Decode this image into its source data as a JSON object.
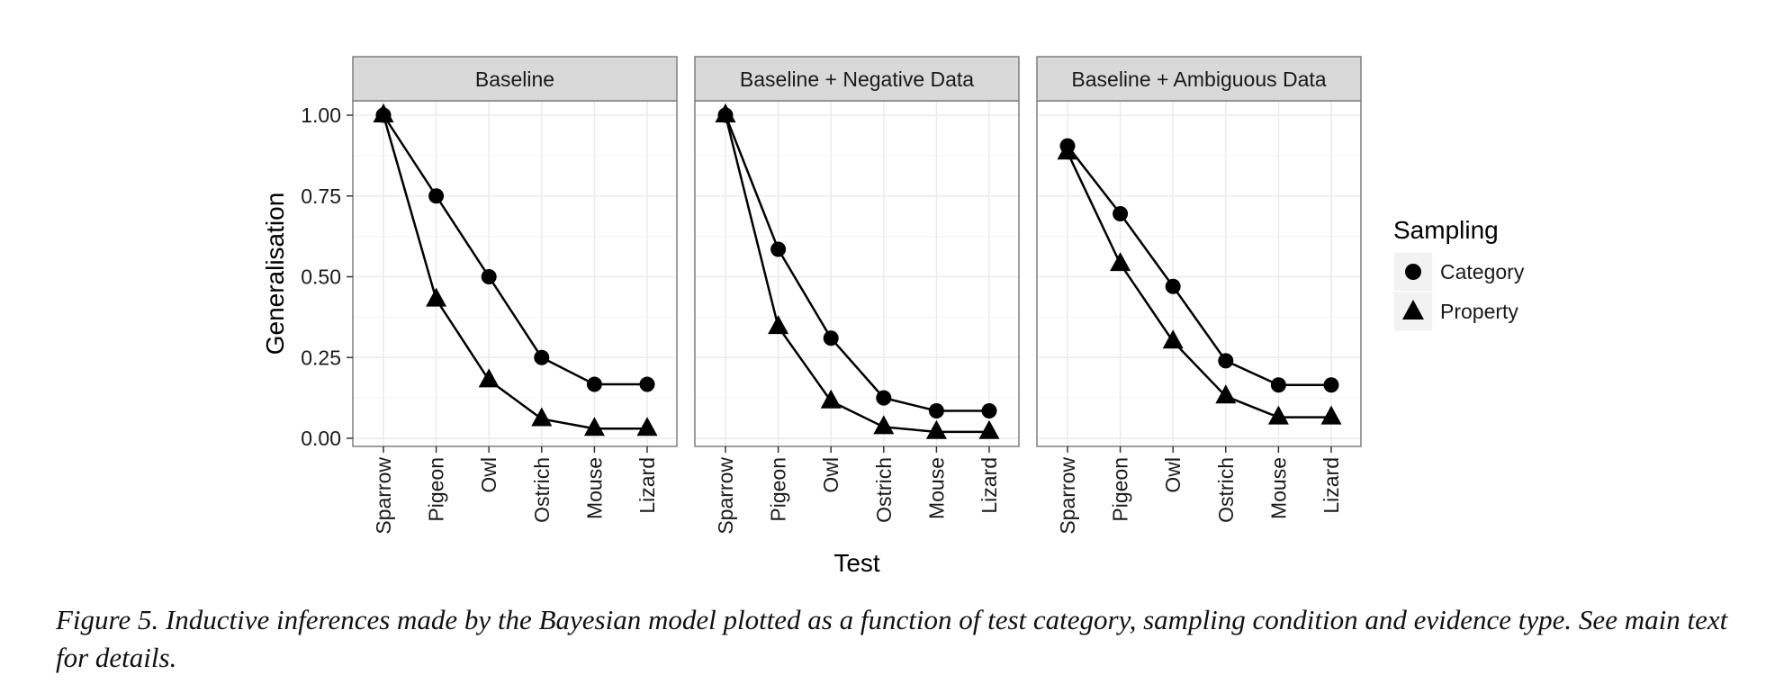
{
  "chart_data": {
    "type": "line",
    "facet_titles": [
      "Baseline",
      "Baseline + Negative Data",
      "Baseline + Ambiguous Data"
    ],
    "categories": [
      "Sparrow",
      "Pigeon",
      "Owl",
      "Ostrich",
      "Mouse",
      "Lizard"
    ],
    "xlabel": "Test",
    "ylabel": "Generalisation",
    "ylim": [
      0,
      1.05
    ],
    "yticks": [
      "0.00",
      "0.25",
      "0.50",
      "0.75",
      "1.00"
    ],
    "grid": true,
    "legend_position": "right",
    "legend_title": "Sampling",
    "series_names": [
      "Category",
      "Property"
    ],
    "panels": [
      {
        "title": "Baseline",
        "series": [
          {
            "name": "Category",
            "marker": "circle",
            "values": [
              1.0,
              0.75,
              0.5,
              0.25,
              0.167,
              0.167
            ]
          },
          {
            "name": "Property",
            "marker": "triangle",
            "values": [
              1.0,
              0.43,
              0.18,
              0.06,
              0.03,
              0.03
            ]
          }
        ]
      },
      {
        "title": "Baseline + Negative Data",
        "series": [
          {
            "name": "Category",
            "marker": "circle",
            "values": [
              1.0,
              0.585,
              0.31,
              0.125,
              0.085,
              0.085
            ]
          },
          {
            "name": "Property",
            "marker": "triangle",
            "values": [
              1.0,
              0.345,
              0.115,
              0.035,
              0.02,
              0.02
            ]
          }
        ]
      },
      {
        "title": "Baseline + Ambiguous Data",
        "series": [
          {
            "name": "Category",
            "marker": "circle",
            "values": [
              0.905,
              0.695,
              0.47,
              0.24,
              0.165,
              0.165
            ]
          },
          {
            "name": "Property",
            "marker": "triangle",
            "values": [
              0.885,
              0.54,
              0.3,
              0.13,
              0.065,
              0.065
            ]
          }
        ]
      }
    ]
  },
  "caption": "Figure 5. Inductive inferences made by the Bayesian model plotted as a function of test category, sampling condition and evidence type. See main text for details.",
  "colors": {
    "strip_fill": "#d9d9d9",
    "panel_border": "#7f7f7f",
    "grid_major": "#ebebeb",
    "grid_minor": "#f5f5f5",
    "series_color": "#000000"
  }
}
